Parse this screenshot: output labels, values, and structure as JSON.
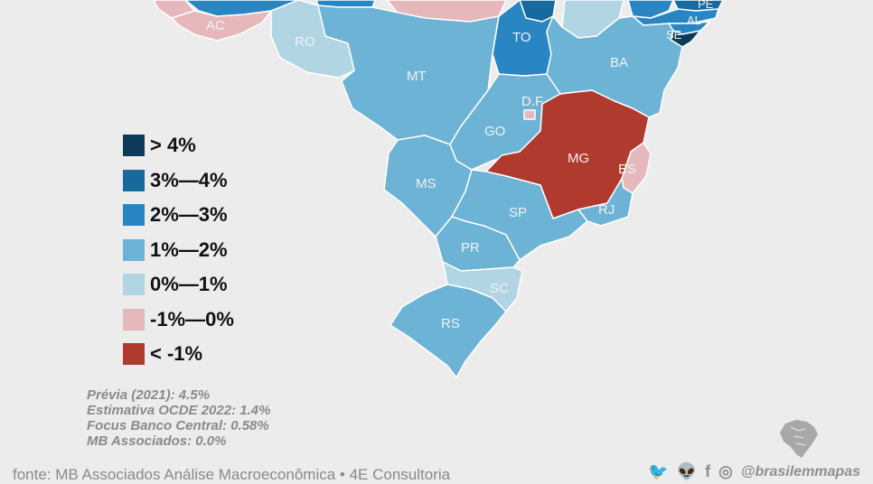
{
  "colors": {
    "background": "#ececec",
    "gt4": "#0e3a5a",
    "r3_4": "#17699e",
    "r2_3": "#2a86c2",
    "r1_2": "#6cb3d6",
    "r0_1": "#b2d5e4",
    "rneg1_0": "#e6b8bb",
    "ltneg1": "#b03a2e"
  },
  "legend": [
    {
      "label": "> 4%",
      "color": "#0e3a5a"
    },
    {
      "label": "3%—4%",
      "color": "#17699e"
    },
    {
      "label": "2%—3%",
      "color": "#2a86c2"
    },
    {
      "label": "1%—2%",
      "color": "#6cb3d6"
    },
    {
      "label": "0%—1%",
      "color": "#b2d5e4"
    },
    {
      "label": "-1%—0%",
      "color": "#e6b8bb"
    },
    {
      "label": "< -1%",
      "color": "#b03a2e"
    }
  ],
  "states": {
    "AC": "AC",
    "RO": "RO",
    "MT": "MT",
    "TO": "TO",
    "BA": "BA",
    "SE": "SE",
    "AL": "AL",
    "PE": "PE",
    "DF": "D.F",
    "GO": "GO",
    "MG": "MG",
    "ES": "ES",
    "MS": "MS",
    "SP": "SP",
    "RJ": "RJ",
    "PR": "PR",
    "SC": "SC",
    "RS": "RS"
  },
  "notes": {
    "line1": "Prévia (2021): 4.5%",
    "line2": "Estimativa OCDE 2022: 1.4%",
    "line3": "Focus Banco Central: 0.58%",
    "line4": "MB Associados: 0.0%"
  },
  "source": "fonte: MB Associados Análise Macroeconômica   • 4E Consultoria",
  "social": {
    "handle": "@brasilemmapas",
    "icons": [
      "twitter-icon",
      "reddit-icon",
      "facebook-icon",
      "instagram-icon"
    ]
  }
}
